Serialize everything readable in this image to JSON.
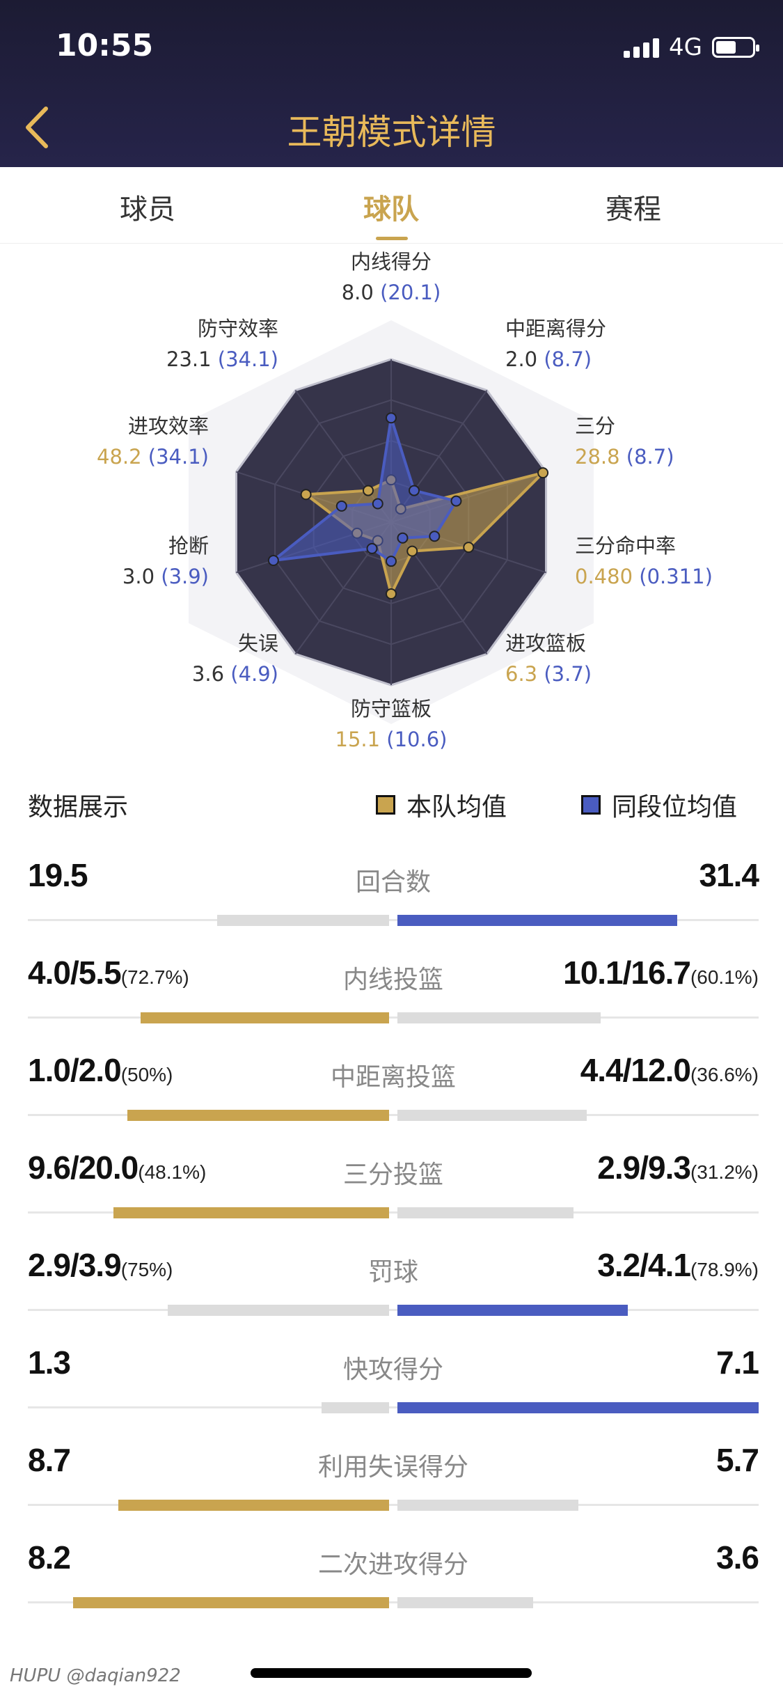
{
  "status_bar": {
    "time": "10:55",
    "network": "4G"
  },
  "header": {
    "title": "王朝模式详情"
  },
  "tabs": [
    {
      "label": "球员"
    },
    {
      "label": "球队",
      "active": true
    },
    {
      "label": "赛程"
    }
  ],
  "radar": {
    "axes": [
      {
        "name": "内线得分",
        "team": "8.0",
        "peer": "(20.1)",
        "team_color": "dark"
      },
      {
        "name": "中距离得分",
        "team": "2.0",
        "peer": "(8.7)",
        "team_color": "dark"
      },
      {
        "name": "三分",
        "team": "28.8",
        "peer": "(8.7)",
        "team_color": "gold"
      },
      {
        "name": "三分命中率",
        "team": "0.480",
        "peer": "(0.311)",
        "team_color": "gold"
      },
      {
        "name": "进攻篮板",
        "team": "6.3",
        "peer": "(3.7)",
        "team_color": "gold"
      },
      {
        "name": "防守篮板",
        "team": "15.1",
        "peer": "(10.6)",
        "team_color": "gold"
      },
      {
        "name": "失误",
        "team": "3.6",
        "peer": "(4.9)",
        "team_color": "dark"
      },
      {
        "name": "抢断",
        "team": "3.0",
        "peer": "(3.9)",
        "team_color": "dark"
      },
      {
        "name": "进攻效率",
        "team": "48.2",
        "peer": "(34.1)",
        "team_color": "gold"
      },
      {
        "name": "防守效率",
        "team": "23.1",
        "peer": "(34.1)",
        "team_color": "dark"
      }
    ],
    "team_series_levels": [
      0.26,
      0.1,
      0.98,
      0.5,
      0.22,
      0.44,
      0.14,
      0.22,
      0.55,
      0.24
    ],
    "peer_series_levels": [
      0.64,
      0.24,
      0.42,
      0.28,
      0.12,
      0.24,
      0.2,
      0.76,
      0.32,
      0.14
    ],
    "colors": {
      "team": "#c9a44f",
      "peer": "#4a5cc0",
      "background": "#36344a"
    }
  },
  "legend": {
    "title": "数据展示",
    "team_label": "本队均值",
    "peer_label": "同段位均值",
    "team_color": "#c9a44f",
    "peer_color": "#4a5cc0"
  },
  "stats": [
    {
      "label": "回合数",
      "left": "19.5",
      "left_pct": "",
      "right": "31.4",
      "right_pct": "",
      "left_share": 0.38,
      "right_share": 0.62,
      "winner": "right"
    },
    {
      "label": "内线投篮",
      "left": "4.0/5.5",
      "left_pct": "(72.7%)",
      "right": "10.1/16.7",
      "right_pct": "(60.1%)",
      "left_share": 0.55,
      "right_share": 0.45,
      "winner": "left"
    },
    {
      "label": "中距离投篮",
      "left": "1.0/2.0",
      "left_pct": "(50%)",
      "right": "4.4/12.0",
      "right_pct": "(36.6%)",
      "left_share": 0.58,
      "right_share": 0.42,
      "winner": "left"
    },
    {
      "label": "三分投篮",
      "left": "9.6/20.0",
      "left_pct": "(48.1%)",
      "right": "2.9/9.3",
      "right_pct": "(31.2%)",
      "left_share": 0.61,
      "right_share": 0.39,
      "winner": "left"
    },
    {
      "label": "罚球",
      "left": "2.9/3.9",
      "left_pct": "(75%)",
      "right": "3.2/4.1",
      "right_pct": "(78.9%)",
      "left_share": 0.49,
      "right_share": 0.51,
      "winner": "right"
    },
    {
      "label": "快攻得分",
      "left": "1.3",
      "left_pct": "",
      "right": "7.1",
      "right_pct": "",
      "left_share": 0.15,
      "right_share": 0.85,
      "winner": "right"
    },
    {
      "label": "利用失误得分",
      "left": "8.7",
      "left_pct": "",
      "right": "5.7",
      "right_pct": "",
      "left_share": 0.6,
      "right_share": 0.4,
      "winner": "left"
    },
    {
      "label": "二次进攻得分",
      "left": "8.2",
      "left_pct": "",
      "right": "3.6",
      "right_pct": "",
      "left_share": 0.7,
      "right_share": 0.3,
      "winner": "left"
    }
  ],
  "watermark": "HUPU @daqian922"
}
